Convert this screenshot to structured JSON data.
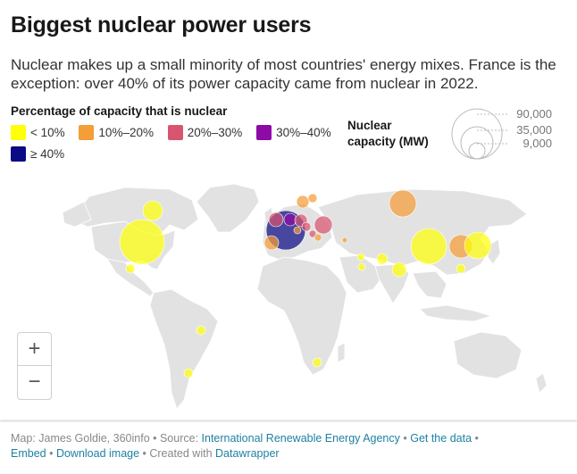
{
  "title": "Biggest nuclear power users",
  "subtitle": "Nuclear makes up a small minority of most countries' energy mixes. France is the exception: over 40% of its power capacity came from nuclear in 2022.",
  "legend": {
    "title": "Percentage of capacity that is nuclear",
    "items": [
      {
        "label": "< 10%",
        "color": "#ffff0a"
      },
      {
        "label": "10%–20%",
        "color": "#f59d38"
      },
      {
        "label": "20%–30%",
        "color": "#d8556f"
      },
      {
        "label": "30%–40%",
        "color": "#8e0aa5"
      },
      {
        "label": "≥ 40%",
        "color": "#0b0b85"
      }
    ]
  },
  "size_legend": {
    "title": "Nuclear capacity (MW)",
    "values": [
      "90,000",
      "35,000",
      "9,000"
    ]
  },
  "zoom": {
    "in_label": "+",
    "out_label": "−"
  },
  "footer": {
    "prefix": "Map: James Goldie, 360info • Source: ",
    "source_link": "International Renewable Energy Agency",
    "sep1": " • ",
    "data_link": "Get the data",
    "sep2": " •",
    "embed_link": "Embed",
    "sep3": " • ",
    "download_link": "Download image",
    "sep4": " • Created with ",
    "dw_link": "Datawrapper"
  }
}
